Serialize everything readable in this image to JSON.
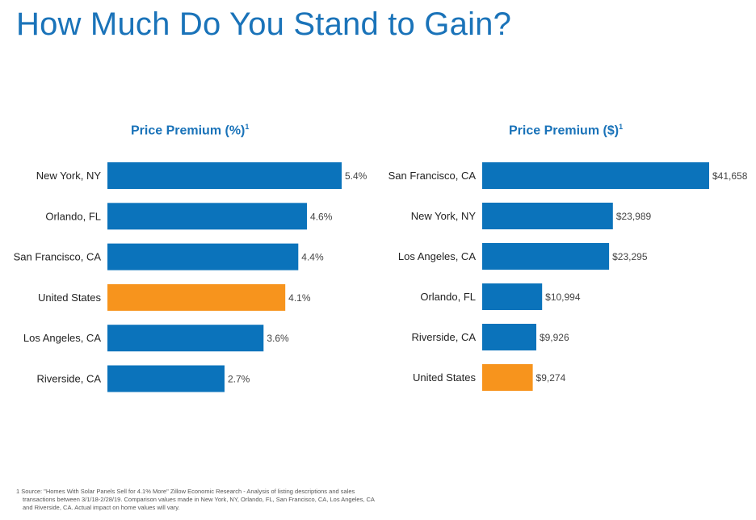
{
  "page": {
    "title": "How Much Do You Stand to Gain?"
  },
  "colors": {
    "title": "#1a73b9",
    "bar": "#0b73bb",
    "highlight": "#f7941d",
    "label": "#222222",
    "value": "#444444"
  },
  "chart_data": [
    {
      "type": "bar",
      "orientation": "horizontal",
      "title": "Price Premium (%)",
      "title_superscript": "1",
      "xlabel": "",
      "ylabel": "",
      "grid": false,
      "categories": [
        "New York, NY",
        "Orlando, FL",
        "San Francisco, CA",
        "United States",
        "Los Angeles, CA",
        "Riverside, CA"
      ],
      "values": [
        5.4,
        4.6,
        4.4,
        4.1,
        3.6,
        2.7
      ],
      "value_labels": [
        "5.4%",
        "4.6%",
        "4.4%",
        "4.1%",
        "3.6%",
        "2.7%"
      ],
      "highlight": "United States",
      "xlim": [
        0,
        5.4
      ]
    },
    {
      "type": "bar",
      "orientation": "horizontal",
      "title": "Price Premium ($)",
      "title_superscript": "1",
      "xlabel": "",
      "ylabel": "",
      "grid": false,
      "categories": [
        "San Francisco, CA",
        "New York, NY",
        "Los Angeles, CA",
        "Orlando, FL",
        "Riverside, CA",
        "United States"
      ],
      "values": [
        41658,
        23989,
        23295,
        10994,
        9926,
        9274
      ],
      "value_labels": [
        "$41,658",
        "$23,989",
        "$23,295",
        "$10,994",
        "$9,926",
        "$9,274"
      ],
      "highlight": "United States",
      "xlim": [
        0,
        41658
      ]
    }
  ],
  "footnote": {
    "lines": [
      "1 Source: \"Homes With Solar Panels Sell for 4.1% More\" Zillow Economic Research - Analysis of listing descriptions and sales",
      "transactions between 3/1/18-2/28/19. Comparison values made in New York, NY, Orlando, FL, San Francisco, CA, Los Angeles, CA",
      "and Riverside, CA. Actual impact on home values will vary."
    ]
  }
}
